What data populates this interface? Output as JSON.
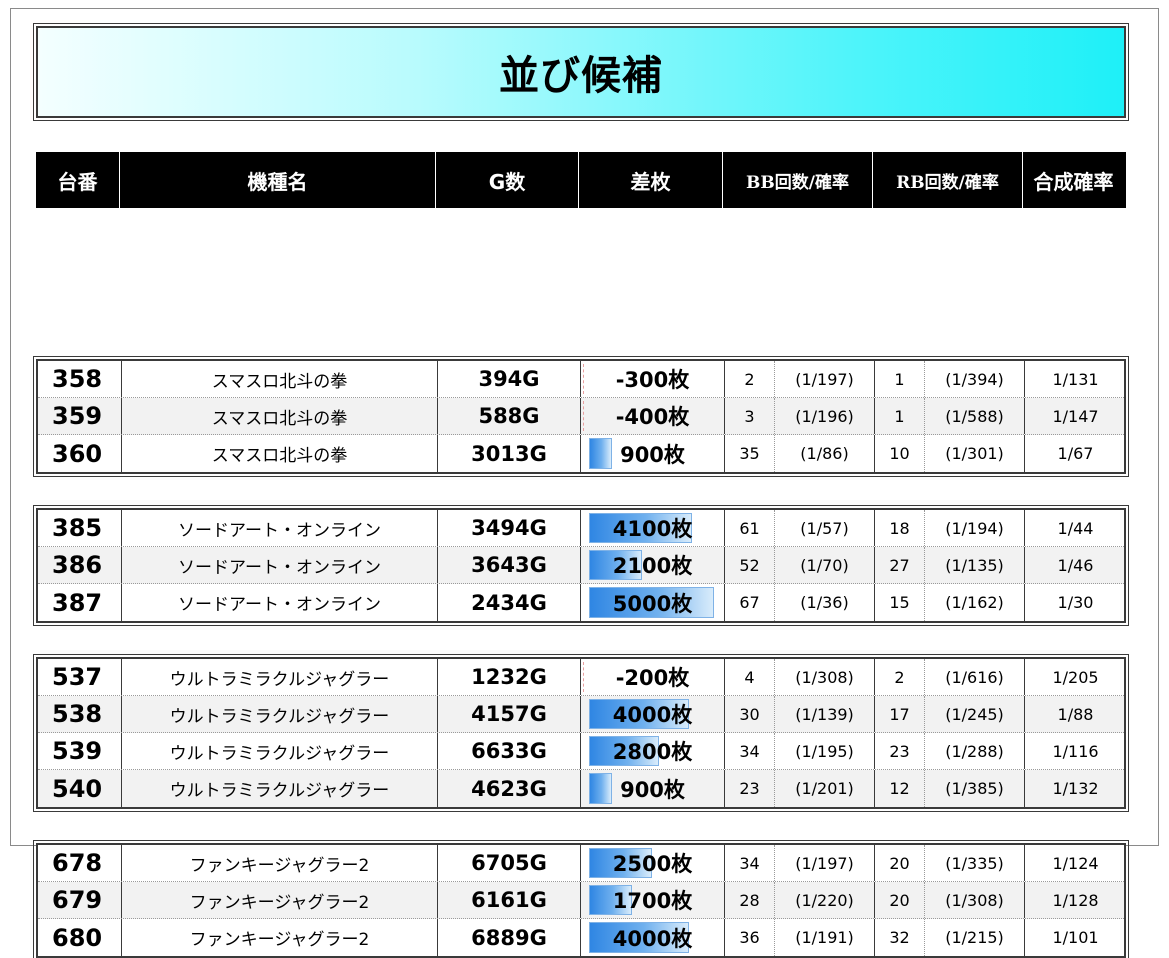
{
  "title": "並び候補",
  "headers": {
    "number": "台番",
    "machine": "機種名",
    "games": "G数",
    "diff": "差枚",
    "bb": "BB回数/確率",
    "rb": "RB回数/確率",
    "combined": "合成確率"
  },
  "groups": [
    {
      "rows": [
        {
          "number": "358",
          "machine": "スマスロ北斗の拳",
          "games": "394G",
          "diff": "-300枚",
          "diff_value": -300,
          "bb_count": "2",
          "bb_rate": "(1/197)",
          "rb_count": "1",
          "rb_rate": "(1/394)",
          "combined": "1/131"
        },
        {
          "number": "359",
          "machine": "スマスロ北斗の拳",
          "games": "588G",
          "diff": "-400枚",
          "diff_value": -400,
          "bb_count": "3",
          "bb_rate": "(1/196)",
          "rb_count": "1",
          "rb_rate": "(1/588)",
          "combined": "1/147"
        },
        {
          "number": "360",
          "machine": "スマスロ北斗の拳",
          "games": "3013G",
          "diff": "900枚",
          "diff_value": 900,
          "bb_count": "35",
          "bb_rate": "(1/86)",
          "rb_count": "10",
          "rb_rate": "(1/301)",
          "combined": "1/67"
        }
      ]
    },
    {
      "rows": [
        {
          "number": "385",
          "machine": "ソードアート・オンライン",
          "games": "3494G",
          "diff": "4100枚",
          "diff_value": 4100,
          "bb_count": "61",
          "bb_rate": "(1/57)",
          "rb_count": "18",
          "rb_rate": "(1/194)",
          "combined": "1/44"
        },
        {
          "number": "386",
          "machine": "ソードアート・オンライン",
          "games": "3643G",
          "diff": "2100枚",
          "diff_value": 2100,
          "bb_count": "52",
          "bb_rate": "(1/70)",
          "rb_count": "27",
          "rb_rate": "(1/135)",
          "combined": "1/46"
        },
        {
          "number": "387",
          "machine": "ソードアート・オンライン",
          "games": "2434G",
          "diff": "5000枚",
          "diff_value": 5000,
          "bb_count": "67",
          "bb_rate": "(1/36)",
          "rb_count": "15",
          "rb_rate": "(1/162)",
          "combined": "1/30"
        }
      ]
    },
    {
      "rows": [
        {
          "number": "537",
          "machine": "ウルトラミラクルジャグラー",
          "games": "1232G",
          "diff": "-200枚",
          "diff_value": -200,
          "bb_count": "4",
          "bb_rate": "(1/308)",
          "rb_count": "2",
          "rb_rate": "(1/616)",
          "combined": "1/205"
        },
        {
          "number": "538",
          "machine": "ウルトラミラクルジャグラー",
          "games": "4157G",
          "diff": "4000枚",
          "diff_value": 4000,
          "bb_count": "30",
          "bb_rate": "(1/139)",
          "rb_count": "17",
          "rb_rate": "(1/245)",
          "combined": "1/88"
        },
        {
          "number": "539",
          "machine": "ウルトラミラクルジャグラー",
          "games": "6633G",
          "diff": "2800枚",
          "diff_value": 2800,
          "bb_count": "34",
          "bb_rate": "(1/195)",
          "rb_count": "23",
          "rb_rate": "(1/288)",
          "combined": "1/116"
        },
        {
          "number": "540",
          "machine": "ウルトラミラクルジャグラー",
          "games": "4623G",
          "diff": "900枚",
          "diff_value": 900,
          "bb_count": "23",
          "bb_rate": "(1/201)",
          "rb_count": "12",
          "rb_rate": "(1/385)",
          "combined": "1/132"
        }
      ]
    },
    {
      "rows": [
        {
          "number": "678",
          "machine": "ファンキージャグラー2",
          "games": "6705G",
          "diff": "2500枚",
          "diff_value": 2500,
          "bb_count": "34",
          "bb_rate": "(1/197)",
          "rb_count": "20",
          "rb_rate": "(1/335)",
          "combined": "1/124"
        },
        {
          "number": "679",
          "machine": "ファンキージャグラー2",
          "games": "6161G",
          "diff": "1700枚",
          "diff_value": 1700,
          "bb_count": "28",
          "bb_rate": "(1/220)",
          "rb_count": "20",
          "rb_rate": "(1/308)",
          "combined": "1/128"
        },
        {
          "number": "680",
          "machine": "ファンキージャグラー2",
          "games": "6889G",
          "diff": "4000枚",
          "diff_value": 4000,
          "bb_count": "36",
          "bb_rate": "(1/191)",
          "rb_count": "32",
          "rb_rate": "(1/215)",
          "combined": "1/101"
        }
      ]
    }
  ],
  "colors": {
    "header_bg": "#000000",
    "title_gradient_end": "#1ef0f8",
    "bar_blue": "#2f86e3"
  }
}
